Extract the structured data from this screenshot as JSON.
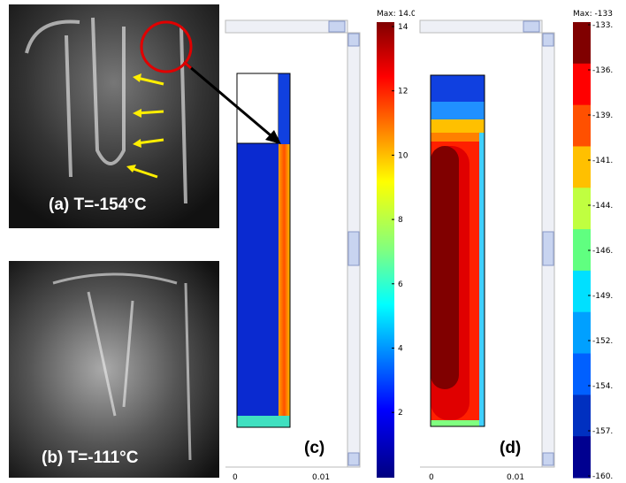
{
  "panel_a": {
    "label": "(a) T=-154°C"
  },
  "panel_b": {
    "label": "(b) T=-111°C"
  },
  "panel_c": {
    "label": "(c)",
    "max_label": "Max: 14.0",
    "colorbar_ticks": [
      "14",
      "12",
      "10",
      "8",
      "6",
      "4",
      "2"
    ],
    "x_ticks": [
      "0",
      "0.01"
    ]
  },
  "panel_d": {
    "label": "(d)",
    "max_label": "Max: -133",
    "colorbar_ticks": [
      "-133.",
      "-136.",
      "-139.",
      "-141.",
      "-144.",
      "-146.",
      "-149.",
      "-152.",
      "-154.",
      "-157.",
      "-160."
    ],
    "x_ticks": [
      "0",
      "0.01"
    ]
  }
}
